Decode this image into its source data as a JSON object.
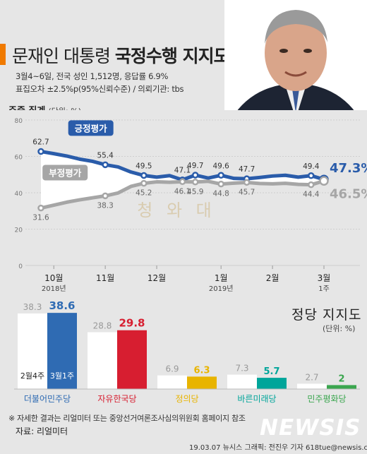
{
  "header": {
    "title_plain": "문재인 대통령",
    "title_bold": "국정수행 지지도",
    "survey_line": "3월4~6일, 전국 성인 1,512명, 응답률 6.9%",
    "error_line": "표집오차 ±2.5%p(95%신뢰수준) / 의뢰기관: tbs",
    "weekly_label": "주중 집계",
    "weekly_unit": "(단위: %)"
  },
  "watermark": {
    "text": "청 와 대"
  },
  "colors": {
    "positive": "#2a5caa",
    "negative": "#a6a6a6",
    "accent": "#f07a00",
    "democratic": "#2f6bb3",
    "liberty_korea": "#d71e30",
    "justice": "#e8b400",
    "bareunmirae": "#00a59a",
    "peace": "#3aa64e"
  },
  "chart_data": [
    {
      "type": "line",
      "ylim": [
        0,
        80
      ],
      "yticks": [
        0,
        20,
        40,
        60,
        80
      ],
      "grid": true,
      "x_labels": [
        {
          "label": "10월",
          "sub": "2018년",
          "at": 1
        },
        {
          "label": "11월",
          "sub": "",
          "at": 5
        },
        {
          "label": "12월",
          "sub": "",
          "at": 9
        },
        {
          "label": "1월",
          "sub": "2019년",
          "at": 14
        },
        {
          "label": "2월",
          "sub": "",
          "at": 18
        },
        {
          "label": "3월",
          "sub": "1주",
          "at": 22
        }
      ],
      "series": [
        {
          "name": "긍정평가",
          "values": [
            62.7,
            61.5,
            60.2,
            58.5,
            57.3,
            55.4,
            54.2,
            51.4,
            49.5,
            48.6,
            49.4,
            47.1,
            49.7,
            48.1,
            49.6,
            47.9,
            47.7,
            48.4,
            49.2,
            49.6,
            48.6,
            49.4,
            47.3
          ],
          "labeled": {
            "0": "62.7",
            "5": "55.4",
            "8": "49.5",
            "11": "47.1",
            "12": "49.7",
            "14": "49.6",
            "16": "47.7",
            "21": "49.4",
            "22": "47.3%"
          }
        },
        {
          "name": "부정평가",
          "values": [
            31.6,
            33.2,
            34.8,
            36.1,
            37.2,
            38.3,
            39.9,
            43.5,
            45.2,
            46.0,
            45.8,
            46.1,
            45.9,
            46.3,
            44.8,
            45.3,
            45.7,
            45.1,
            44.9,
            45.2,
            44.6,
            44.4,
            46.5
          ],
          "labeled": {
            "0": "31.6",
            "5": "38.3",
            "8": "45.2",
            "11": "46.1",
            "12": "45.9",
            "14": "44.8",
            "16": "45.7",
            "21": "44.4",
            "22": "46.5%"
          }
        }
      ]
    },
    {
      "type": "bar",
      "title": "정당 지지도",
      "unit": "(단위: %)",
      "ylim": [
        0,
        40
      ],
      "categories": [
        "더불어민주당",
        "자유한국당",
        "정의당",
        "바른미래당",
        "민주평화당"
      ],
      "series": [
        {
          "name": "2월4주",
          "values": [
            38.3,
            28.8,
            6.9,
            7.3,
            2.7
          ]
        },
        {
          "name": "3월1주",
          "values": [
            38.6,
            29.8,
            6.3,
            5.7,
            2.0
          ]
        }
      ]
    }
  ],
  "footer": {
    "note": "※ 자세한 결과는 리얼미터 또는 중앙선거여론조사심의위원회 홈페이지 참조",
    "source": "자료: 리얼미터",
    "credit": "19.03.07  뉴시스 그래픽: 전진우 기자 618tue@newsis.com",
    "logo": "NEWSIS"
  }
}
